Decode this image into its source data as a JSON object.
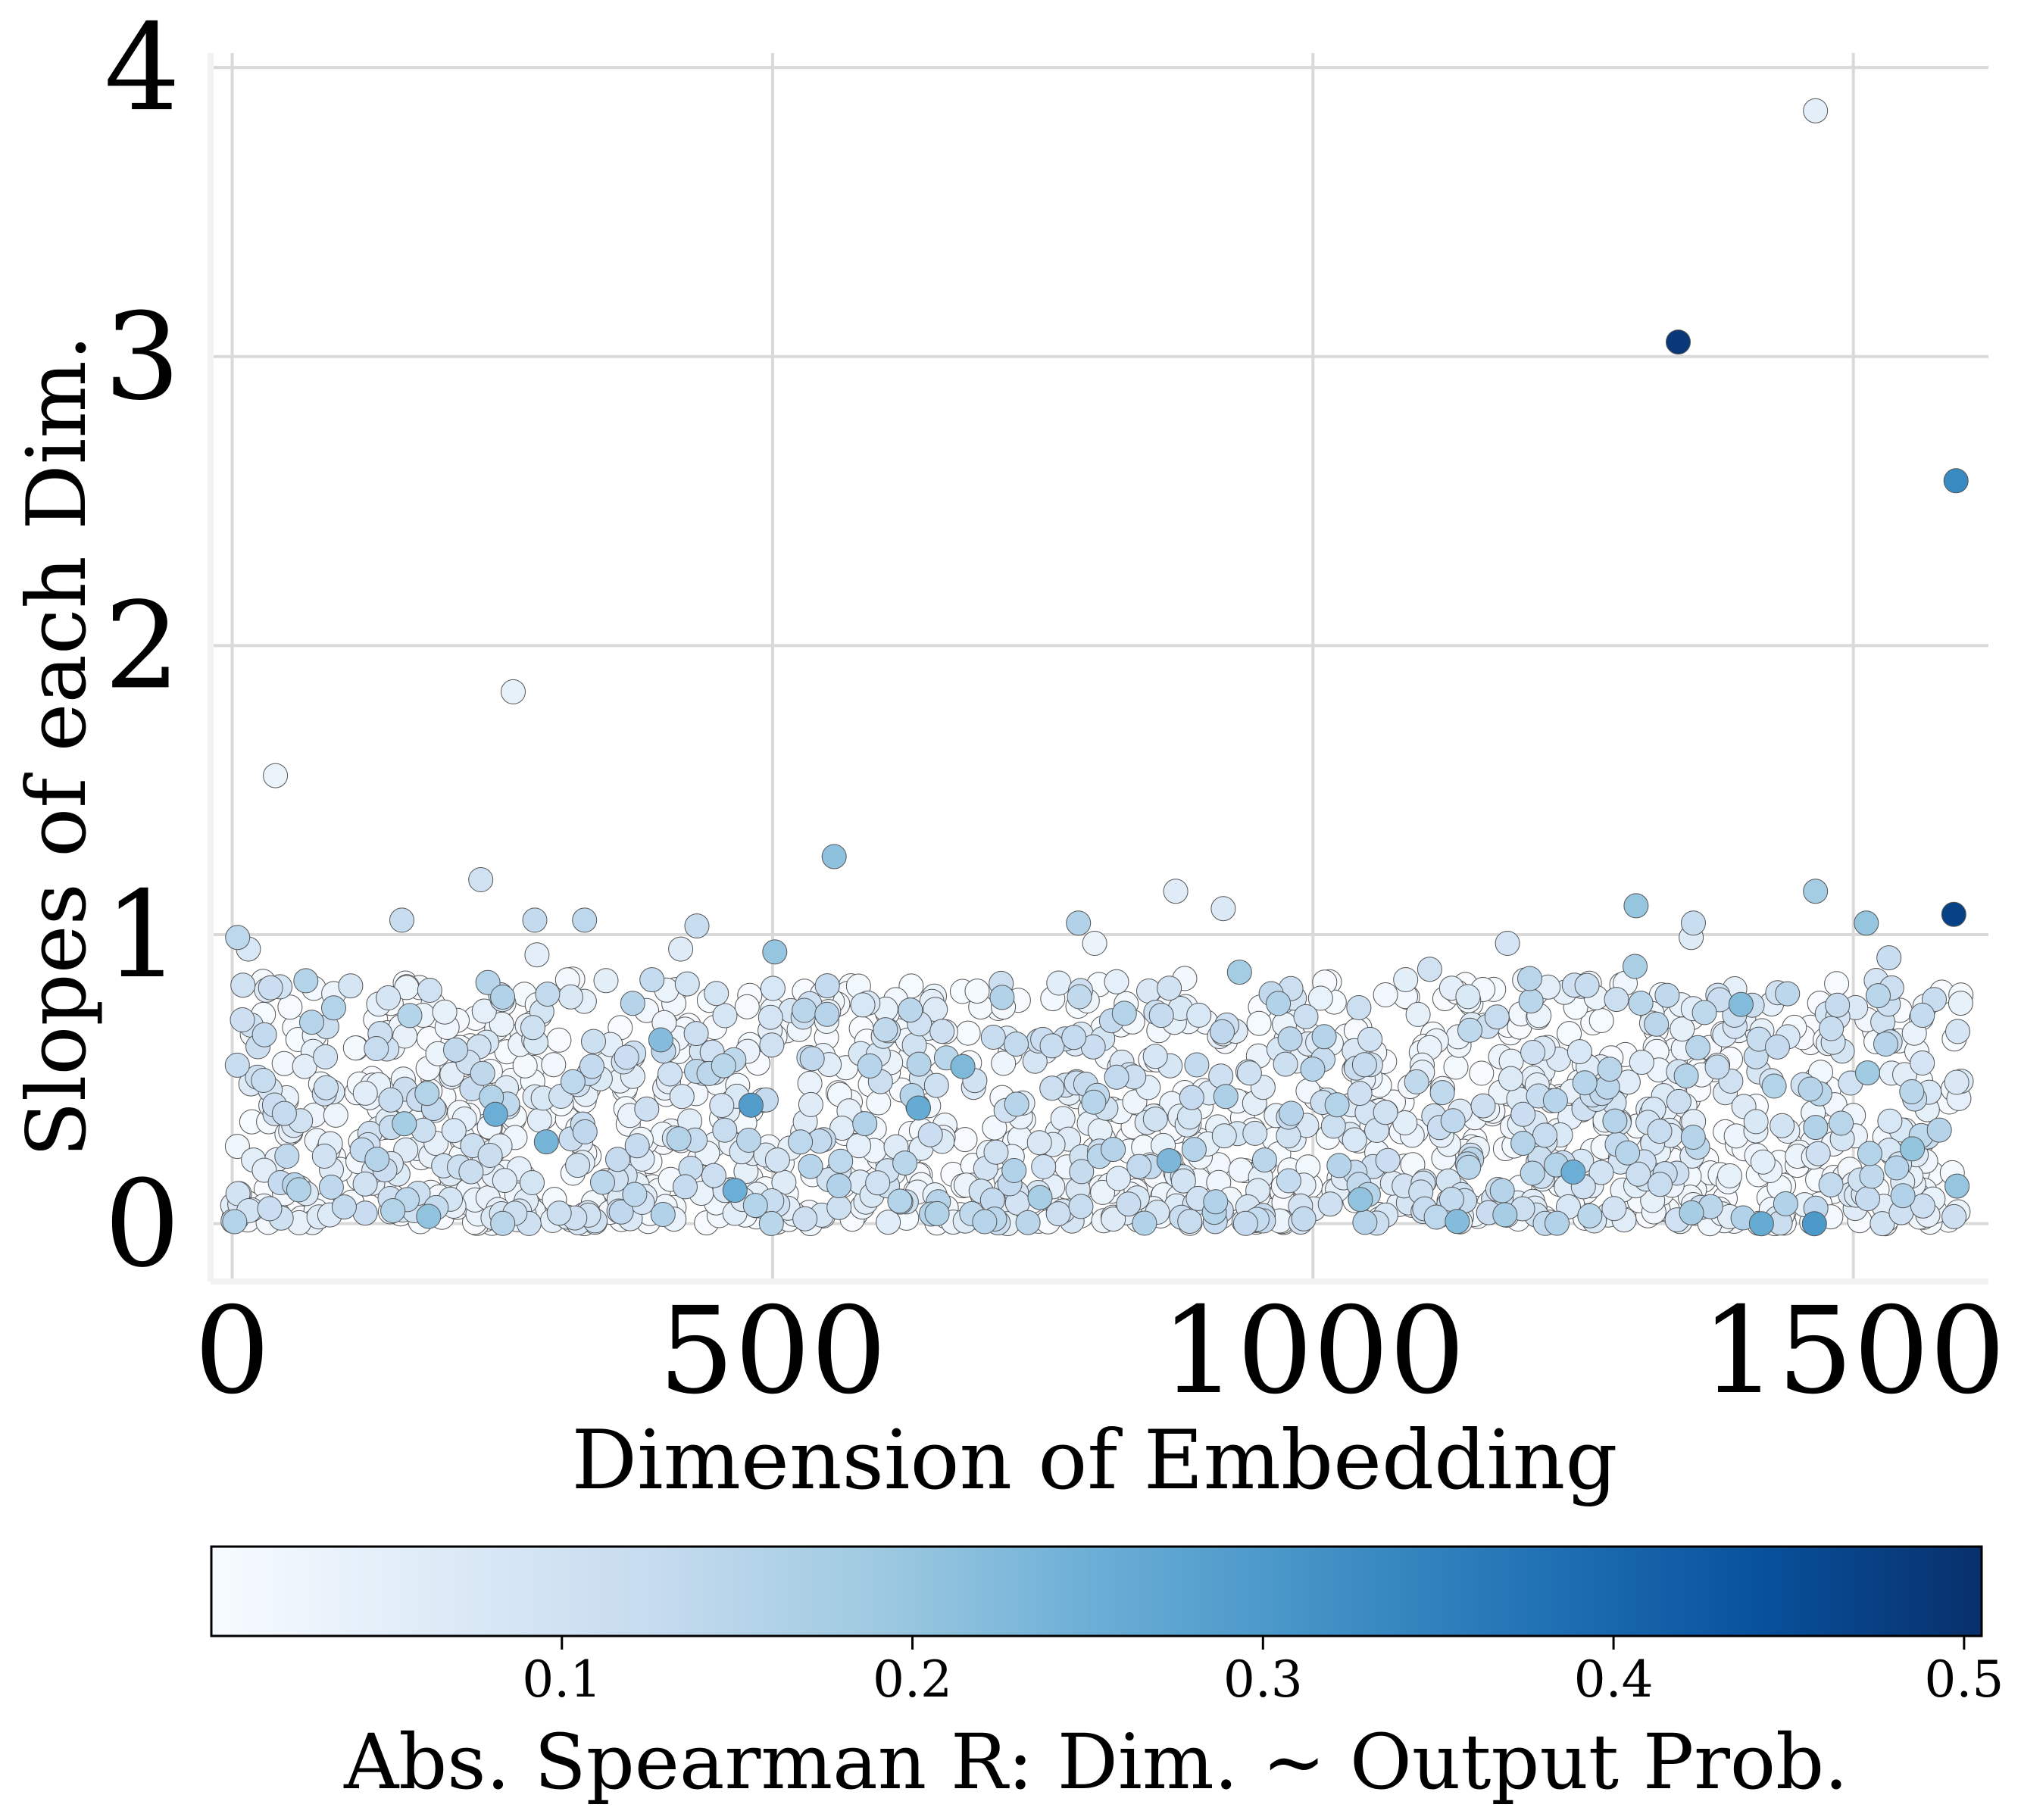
{
  "chart_data": {
    "type": "scatter",
    "title": "",
    "xlabel": "Dimension of Embedding",
    "ylabel": "Slopes of each Dim.",
    "xlim": [
      -20,
      1625
    ],
    "ylim": [
      -0.2,
      4.05
    ],
    "x_ticks": [
      0,
      500,
      1000,
      1500
    ],
    "x_tick_labels": [
      "0",
      "500",
      "1000",
      "1500"
    ],
    "y_ticks": [
      0,
      1,
      2,
      3,
      4
    ],
    "y_tick_labels": [
      "0",
      "1",
      "2",
      "3",
      "4"
    ],
    "grid": true,
    "colormap": "Blues",
    "color_by": "abs_spearman_r",
    "colorbar": {
      "label": "Abs. Spearman R: Dim. ~ Output Prob.",
      "min": 0.0,
      "max": 0.505,
      "ticks": [
        0.1,
        0.2,
        0.3,
        0.4,
        0.5
      ],
      "tick_labels": [
        "0.1",
        "0.2",
        "0.3",
        "0.4",
        "0.5"
      ],
      "placement": "bottom"
    },
    "n_points": 1600,
    "bulk_range": {
      "x": [
        0,
        1600
      ],
      "y": [
        0.0,
        0.85
      ]
    },
    "highlighted_points": [
      {
        "x": 1465,
        "y": 3.85,
        "r": 0.05
      },
      {
        "x": 1338,
        "y": 3.05,
        "r": 0.49
      },
      {
        "x": 1595,
        "y": 2.57,
        "r": 0.33
      },
      {
        "x": 1593,
        "y": 1.07,
        "r": 0.47
      },
      {
        "x": 260,
        "y": 1.84,
        "r": 0.04
      },
      {
        "x": 40,
        "y": 1.55,
        "r": 0.03
      },
      {
        "x": 557,
        "y": 1.27,
        "r": 0.21
      },
      {
        "x": 230,
        "y": 1.19,
        "r": 0.1
      },
      {
        "x": 873,
        "y": 1.15,
        "r": 0.06
      },
      {
        "x": 1465,
        "y": 1.15,
        "r": 0.18
      },
      {
        "x": 1299,
        "y": 1.1,
        "r": 0.2
      },
      {
        "x": 917,
        "y": 1.09,
        "r": 0.07
      },
      {
        "x": 157,
        "y": 1.05,
        "r": 0.12
      },
      {
        "x": 280,
        "y": 1.05,
        "r": 0.13
      },
      {
        "x": 326,
        "y": 1.05,
        "r": 0.14
      },
      {
        "x": 1512,
        "y": 1.04,
        "r": 0.2
      },
      {
        "x": 1352,
        "y": 1.04,
        "r": 0.12
      },
      {
        "x": 783,
        "y": 1.04,
        "r": 0.16
      },
      {
        "x": 430,
        "y": 1.03,
        "r": 0.12
      },
      {
        "x": 1350,
        "y": 0.99,
        "r": 0.06
      },
      {
        "x": 5,
        "y": 0.99,
        "r": 0.14
      },
      {
        "x": 798,
        "y": 0.97,
        "r": 0.03
      },
      {
        "x": 1180,
        "y": 0.97,
        "r": 0.09
      },
      {
        "x": 15,
        "y": 0.95,
        "r": 0.08
      },
      {
        "x": 415,
        "y": 0.95,
        "r": 0.06
      },
      {
        "x": 502,
        "y": 0.94,
        "r": 0.2
      },
      {
        "x": 282,
        "y": 0.93,
        "r": 0.05
      },
      {
        "x": 1533,
        "y": 0.92,
        "r": 0.12
      },
      {
        "x": 1298,
        "y": 0.89,
        "r": 0.17
      },
      {
        "x": 1108,
        "y": 0.88,
        "r": 0.1
      },
      {
        "x": 932,
        "y": 0.87,
        "r": 0.18
      },
      {
        "x": 480,
        "y": 0.41,
        "r": 0.29
      },
      {
        "x": 635,
        "y": 0.4,
        "r": 0.26
      },
      {
        "x": 1464,
        "y": 0.0,
        "r": 0.3
      },
      {
        "x": 1415,
        "y": 0.0,
        "r": 0.26
      },
      {
        "x": 1596,
        "y": 0.13,
        "r": 0.2
      }
    ]
  }
}
